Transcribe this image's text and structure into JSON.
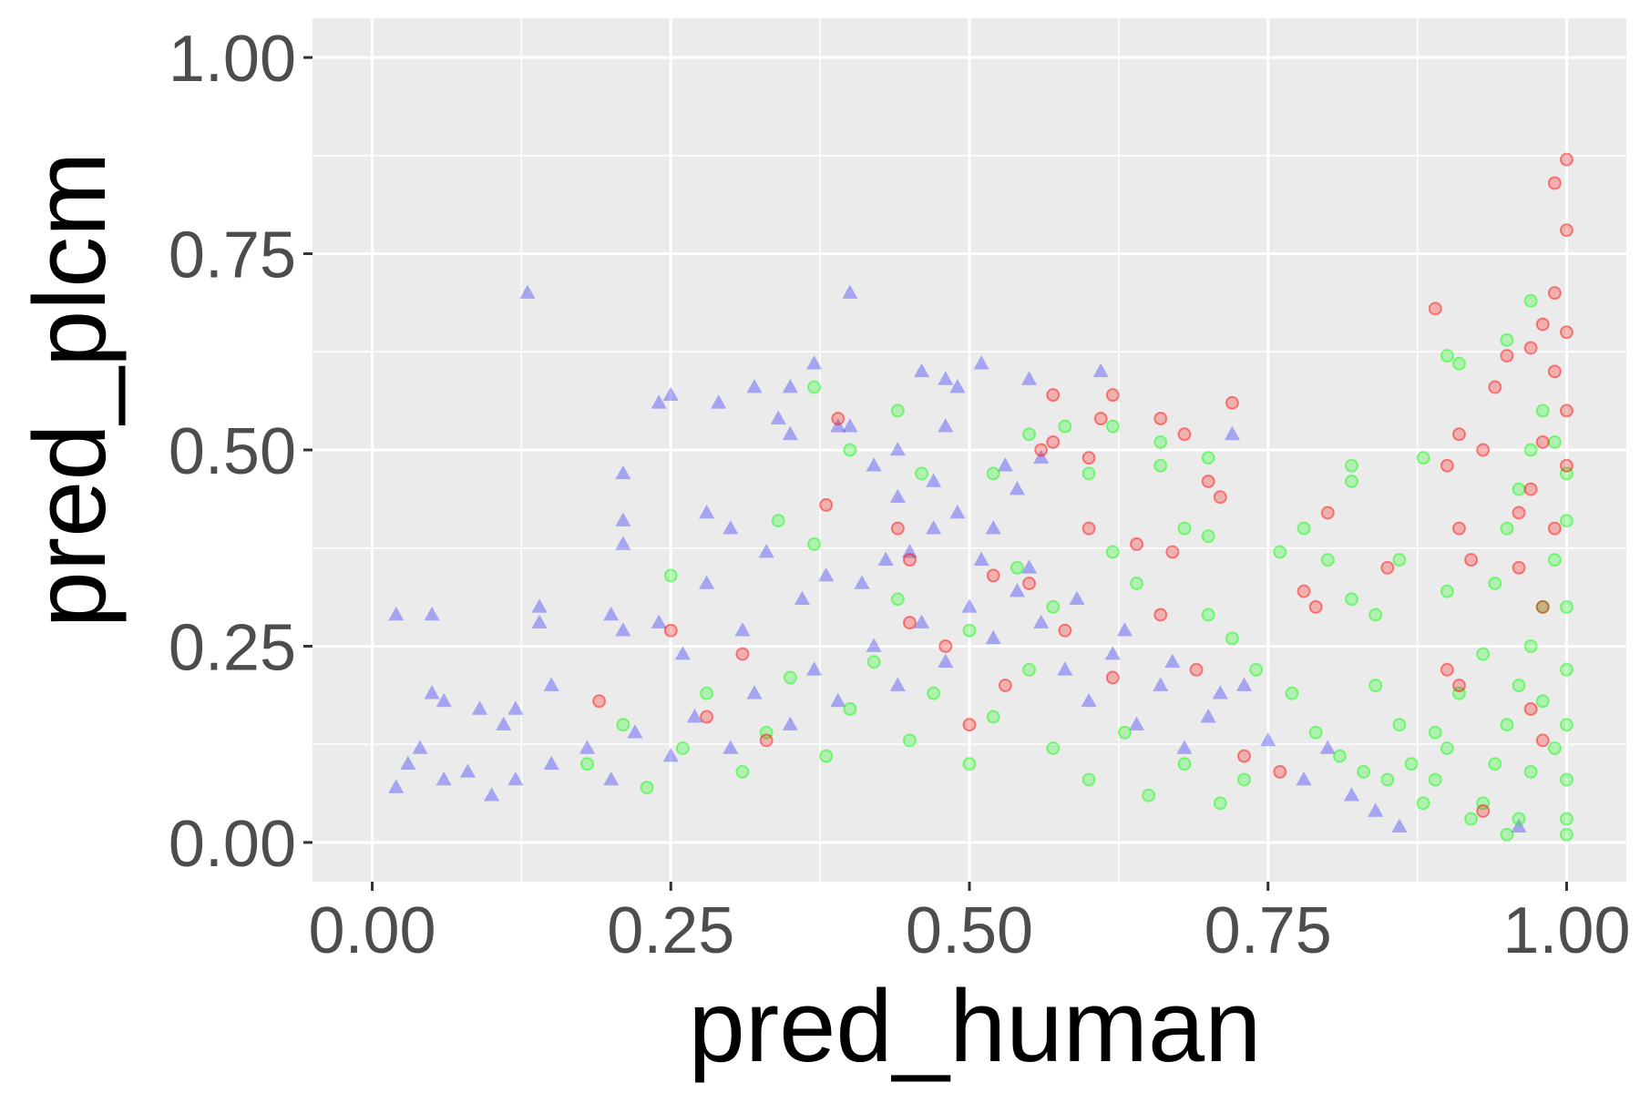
{
  "chart_data": {
    "type": "scatter",
    "title": "",
    "xlabel": "pred_human",
    "ylabel": "pred_plcm",
    "xlim": [
      -0.05,
      1.05
    ],
    "ylim": [
      -0.05,
      1.05
    ],
    "x_ticks": [
      0.0,
      0.25,
      0.5,
      0.75,
      1.0
    ],
    "y_ticks": [
      0.0,
      0.25,
      0.5,
      0.75,
      1.0
    ],
    "x_tick_labels": [
      "0.00",
      "0.25",
      "0.50",
      "0.75",
      "1.00"
    ],
    "y_tick_labels": [
      "0.00",
      "0.25",
      "0.50",
      "0.75",
      "1.00"
    ],
    "grid": true,
    "legend": "none",
    "colors": {
      "panel_background": "#ebebeb",
      "grid": "#ffffff",
      "blue_series": "#0000ff",
      "green_series": "#00ff00",
      "red_series": "#ff0000"
    },
    "series": [
      {
        "color": "#0000ff",
        "marker": "triangle",
        "points": [
          [
            0.02,
            0.29
          ],
          [
            0.05,
            0.29
          ],
          [
            0.13,
            0.7
          ],
          [
            0.4,
            0.7
          ],
          [
            0.37,
            0.61
          ],
          [
            0.51,
            0.61
          ],
          [
            0.46,
            0.6
          ],
          [
            0.61,
            0.6
          ],
          [
            0.24,
            0.56
          ],
          [
            0.25,
            0.57
          ],
          [
            0.29,
            0.56
          ],
          [
            0.32,
            0.58
          ],
          [
            0.35,
            0.58
          ],
          [
            0.48,
            0.59
          ],
          [
            0.49,
            0.58
          ],
          [
            0.55,
            0.59
          ],
          [
            0.72,
            0.52
          ],
          [
            0.34,
            0.54
          ],
          [
            0.35,
            0.52
          ],
          [
            0.39,
            0.53
          ],
          [
            0.4,
            0.53
          ],
          [
            0.48,
            0.53
          ],
          [
            0.21,
            0.47
          ],
          [
            0.21,
            0.41
          ],
          [
            0.21,
            0.38
          ],
          [
            0.28,
            0.42
          ],
          [
            0.3,
            0.4
          ],
          [
            0.44,
            0.5
          ],
          [
            0.42,
            0.48
          ],
          [
            0.47,
            0.46
          ],
          [
            0.53,
            0.48
          ],
          [
            0.56,
            0.49
          ],
          [
            0.54,
            0.45
          ],
          [
            0.14,
            0.3
          ],
          [
            0.14,
            0.28
          ],
          [
            0.2,
            0.29
          ],
          [
            0.21,
            0.27
          ],
          [
            0.12,
            0.17
          ],
          [
            0.11,
            0.15
          ],
          [
            0.09,
            0.17
          ],
          [
            0.15,
            0.2
          ],
          [
            0.05,
            0.19
          ],
          [
            0.06,
            0.18
          ],
          [
            0.03,
            0.1
          ],
          [
            0.04,
            0.12
          ],
          [
            0.02,
            0.07
          ],
          [
            0.06,
            0.08
          ],
          [
            0.08,
            0.09
          ],
          [
            0.1,
            0.06
          ],
          [
            0.12,
            0.08
          ],
          [
            0.15,
            0.1
          ],
          [
            0.18,
            0.12
          ],
          [
            0.2,
            0.08
          ],
          [
            0.22,
            0.14
          ],
          [
            0.25,
            0.11
          ],
          [
            0.27,
            0.16
          ],
          [
            0.3,
            0.12
          ],
          [
            0.32,
            0.19
          ],
          [
            0.35,
            0.15
          ],
          [
            0.37,
            0.22
          ],
          [
            0.39,
            0.18
          ],
          [
            0.42,
            0.25
          ],
          [
            0.44,
            0.2
          ],
          [
            0.46,
            0.28
          ],
          [
            0.48,
            0.23
          ],
          [
            0.5,
            0.3
          ],
          [
            0.52,
            0.26
          ],
          [
            0.54,
            0.32
          ],
          [
            0.56,
            0.28
          ],
          [
            0.58,
            0.22
          ],
          [
            0.6,
            0.18
          ],
          [
            0.62,
            0.24
          ],
          [
            0.64,
            0.15
          ],
          [
            0.66,
            0.2
          ],
          [
            0.68,
            0.12
          ],
          [
            0.7,
            0.16
          ],
          [
            0.73,
            0.2
          ],
          [
            0.75,
            0.13
          ],
          [
            0.78,
            0.08
          ],
          [
            0.8,
            0.12
          ],
          [
            0.82,
            0.06
          ],
          [
            0.84,
            0.04
          ],
          [
            0.86,
            0.02
          ],
          [
            0.47,
            0.4
          ],
          [
            0.43,
            0.36
          ],
          [
            0.38,
            0.34
          ],
          [
            0.33,
            0.37
          ],
          [
            0.28,
            0.33
          ],
          [
            0.24,
            0.28
          ],
          [
            0.26,
            0.24
          ],
          [
            0.31,
            0.27
          ],
          [
            0.36,
            0.31
          ],
          [
            0.41,
            0.33
          ],
          [
            0.45,
            0.37
          ],
          [
            0.51,
            0.36
          ],
          [
            0.55,
            0.35
          ],
          [
            0.59,
            0.31
          ],
          [
            0.63,
            0.27
          ],
          [
            0.67,
            0.23
          ],
          [
            0.71,
            0.19
          ],
          [
            0.49,
            0.42
          ],
          [
            0.52,
            0.4
          ],
          [
            0.44,
            0.44
          ],
          [
            0.96,
            0.02
          ]
        ]
      },
      {
        "color": "#00ff00",
        "marker": "circle",
        "points": [
          [
            0.97,
            0.69
          ],
          [
            0.9,
            0.62
          ],
          [
            0.91,
            0.61
          ],
          [
            0.95,
            0.64
          ],
          [
            0.37,
            0.58
          ],
          [
            0.44,
            0.55
          ],
          [
            0.55,
            0.52
          ],
          [
            0.58,
            0.53
          ],
          [
            0.62,
            0.53
          ],
          [
            0.66,
            0.51
          ],
          [
            0.4,
            0.5
          ],
          [
            0.46,
            0.47
          ],
          [
            0.52,
            0.47
          ],
          [
            0.6,
            0.47
          ],
          [
            0.66,
            0.48
          ],
          [
            0.7,
            0.49
          ],
          [
            0.82,
            0.48
          ],
          [
            0.82,
            0.46
          ],
          [
            0.88,
            0.49
          ],
          [
            0.68,
            0.4
          ],
          [
            0.7,
            0.39
          ],
          [
            0.76,
            0.37
          ],
          [
            0.78,
            0.4
          ],
          [
            0.8,
            0.36
          ],
          [
            0.86,
            0.36
          ],
          [
            0.9,
            0.32
          ],
          [
            0.82,
            0.31
          ],
          [
            0.84,
            0.29
          ],
          [
            0.25,
            0.34
          ],
          [
            0.34,
            0.41
          ],
          [
            0.37,
            0.38
          ],
          [
            0.44,
            0.31
          ],
          [
            0.5,
            0.27
          ],
          [
            0.54,
            0.35
          ],
          [
            0.57,
            0.3
          ],
          [
            0.62,
            0.37
          ],
          [
            0.64,
            0.33
          ],
          [
            0.7,
            0.29
          ],
          [
            0.72,
            0.26
          ],
          [
            0.74,
            0.22
          ],
          [
            0.77,
            0.19
          ],
          [
            0.79,
            0.14
          ],
          [
            0.81,
            0.11
          ],
          [
            0.83,
            0.09
          ],
          [
            0.85,
            0.08
          ],
          [
            0.87,
            0.1
          ],
          [
            0.89,
            0.14
          ],
          [
            0.91,
            0.19
          ],
          [
            0.93,
            0.24
          ],
          [
            0.94,
            0.33
          ],
          [
            0.95,
            0.4
          ],
          [
            0.96,
            0.45
          ],
          [
            0.97,
            0.5
          ],
          [
            0.98,
            0.55
          ],
          [
            0.99,
            0.51
          ],
          [
            1.0,
            0.47
          ],
          [
            1.0,
            0.41
          ],
          [
            0.99,
            0.36
          ],
          [
            0.98,
            0.3
          ],
          [
            0.97,
            0.25
          ],
          [
            0.96,
            0.2
          ],
          [
            0.95,
            0.15
          ],
          [
            0.94,
            0.1
          ],
          [
            0.93,
            0.05
          ],
          [
            0.92,
            0.03
          ],
          [
            1.0,
            0.3
          ],
          [
            1.0,
            0.22
          ],
          [
            1.0,
            0.15
          ],
          [
            1.0,
            0.08
          ],
          [
            1.0,
            0.03
          ],
          [
            1.0,
            0.01
          ],
          [
            0.99,
            0.12
          ],
          [
            0.98,
            0.18
          ],
          [
            0.97,
            0.09
          ],
          [
            0.96,
            0.03
          ],
          [
            0.95,
            0.01
          ],
          [
            0.88,
            0.05
          ],
          [
            0.89,
            0.08
          ],
          [
            0.9,
            0.12
          ],
          [
            0.86,
            0.15
          ],
          [
            0.84,
            0.2
          ],
          [
            0.18,
            0.1
          ],
          [
            0.21,
            0.15
          ],
          [
            0.23,
            0.07
          ],
          [
            0.26,
            0.12
          ],
          [
            0.28,
            0.19
          ],
          [
            0.31,
            0.09
          ],
          [
            0.33,
            0.14
          ],
          [
            0.35,
            0.21
          ],
          [
            0.38,
            0.11
          ],
          [
            0.4,
            0.17
          ],
          [
            0.42,
            0.23
          ],
          [
            0.45,
            0.13
          ],
          [
            0.47,
            0.19
          ],
          [
            0.5,
            0.1
          ],
          [
            0.52,
            0.16
          ],
          [
            0.55,
            0.22
          ],
          [
            0.57,
            0.12
          ],
          [
            0.6,
            0.08
          ],
          [
            0.63,
            0.14
          ],
          [
            0.65,
            0.06
          ],
          [
            0.68,
            0.1
          ],
          [
            0.71,
            0.05
          ],
          [
            0.73,
            0.08
          ]
        ]
      },
      {
        "color": "#ff0000",
        "marker": "circle",
        "points": [
          [
            1.0,
            0.87
          ],
          [
            0.99,
            0.84
          ],
          [
            1.0,
            0.78
          ],
          [
            0.99,
            0.7
          ],
          [
            1.0,
            0.65
          ],
          [
            0.98,
            0.66
          ],
          [
            0.97,
            0.63
          ],
          [
            0.95,
            0.62
          ],
          [
            0.89,
            0.68
          ],
          [
            0.94,
            0.58
          ],
          [
            0.99,
            0.6
          ],
          [
            1.0,
            0.55
          ],
          [
            0.98,
            0.51
          ],
          [
            1.0,
            0.48
          ],
          [
            0.97,
            0.45
          ],
          [
            0.96,
            0.42
          ],
          [
            0.93,
            0.5
          ],
          [
            0.91,
            0.52
          ],
          [
            0.9,
            0.48
          ],
          [
            0.91,
            0.4
          ],
          [
            0.92,
            0.36
          ],
          [
            0.96,
            0.35
          ],
          [
            0.99,
            0.4
          ],
          [
            0.98,
            0.3
          ],
          [
            0.57,
            0.57
          ],
          [
            0.61,
            0.54
          ],
          [
            0.62,
            0.57
          ],
          [
            0.66,
            0.54
          ],
          [
            0.68,
            0.52
          ],
          [
            0.72,
            0.56
          ],
          [
            0.56,
            0.5
          ],
          [
            0.57,
            0.51
          ],
          [
            0.6,
            0.49
          ],
          [
            0.7,
            0.46
          ],
          [
            0.71,
            0.44
          ],
          [
            0.38,
            0.43
          ],
          [
            0.39,
            0.54
          ],
          [
            0.44,
            0.4
          ],
          [
            0.45,
            0.36
          ],
          [
            0.52,
            0.34
          ],
          [
            0.55,
            0.33
          ],
          [
            0.6,
            0.4
          ],
          [
            0.64,
            0.38
          ],
          [
            0.67,
            0.37
          ],
          [
            0.8,
            0.42
          ],
          [
            0.78,
            0.32
          ],
          [
            0.79,
            0.3
          ],
          [
            0.85,
            0.35
          ],
          [
            0.9,
            0.22
          ],
          [
            0.91,
            0.2
          ],
          [
            0.97,
            0.17
          ],
          [
            0.98,
            0.13
          ],
          [
            0.93,
            0.04
          ],
          [
            0.25,
            0.27
          ],
          [
            0.28,
            0.16
          ],
          [
            0.19,
            0.18
          ],
          [
            0.31,
            0.24
          ],
          [
            0.33,
            0.13
          ],
          [
            0.45,
            0.28
          ],
          [
            0.48,
            0.25
          ],
          [
            0.5,
            0.15
          ],
          [
            0.53,
            0.2
          ],
          [
            0.58,
            0.27
          ],
          [
            0.62,
            0.21
          ],
          [
            0.66,
            0.29
          ],
          [
            0.69,
            0.22
          ],
          [
            0.73,
            0.11
          ],
          [
            0.76,
            0.09
          ]
        ]
      }
    ]
  }
}
